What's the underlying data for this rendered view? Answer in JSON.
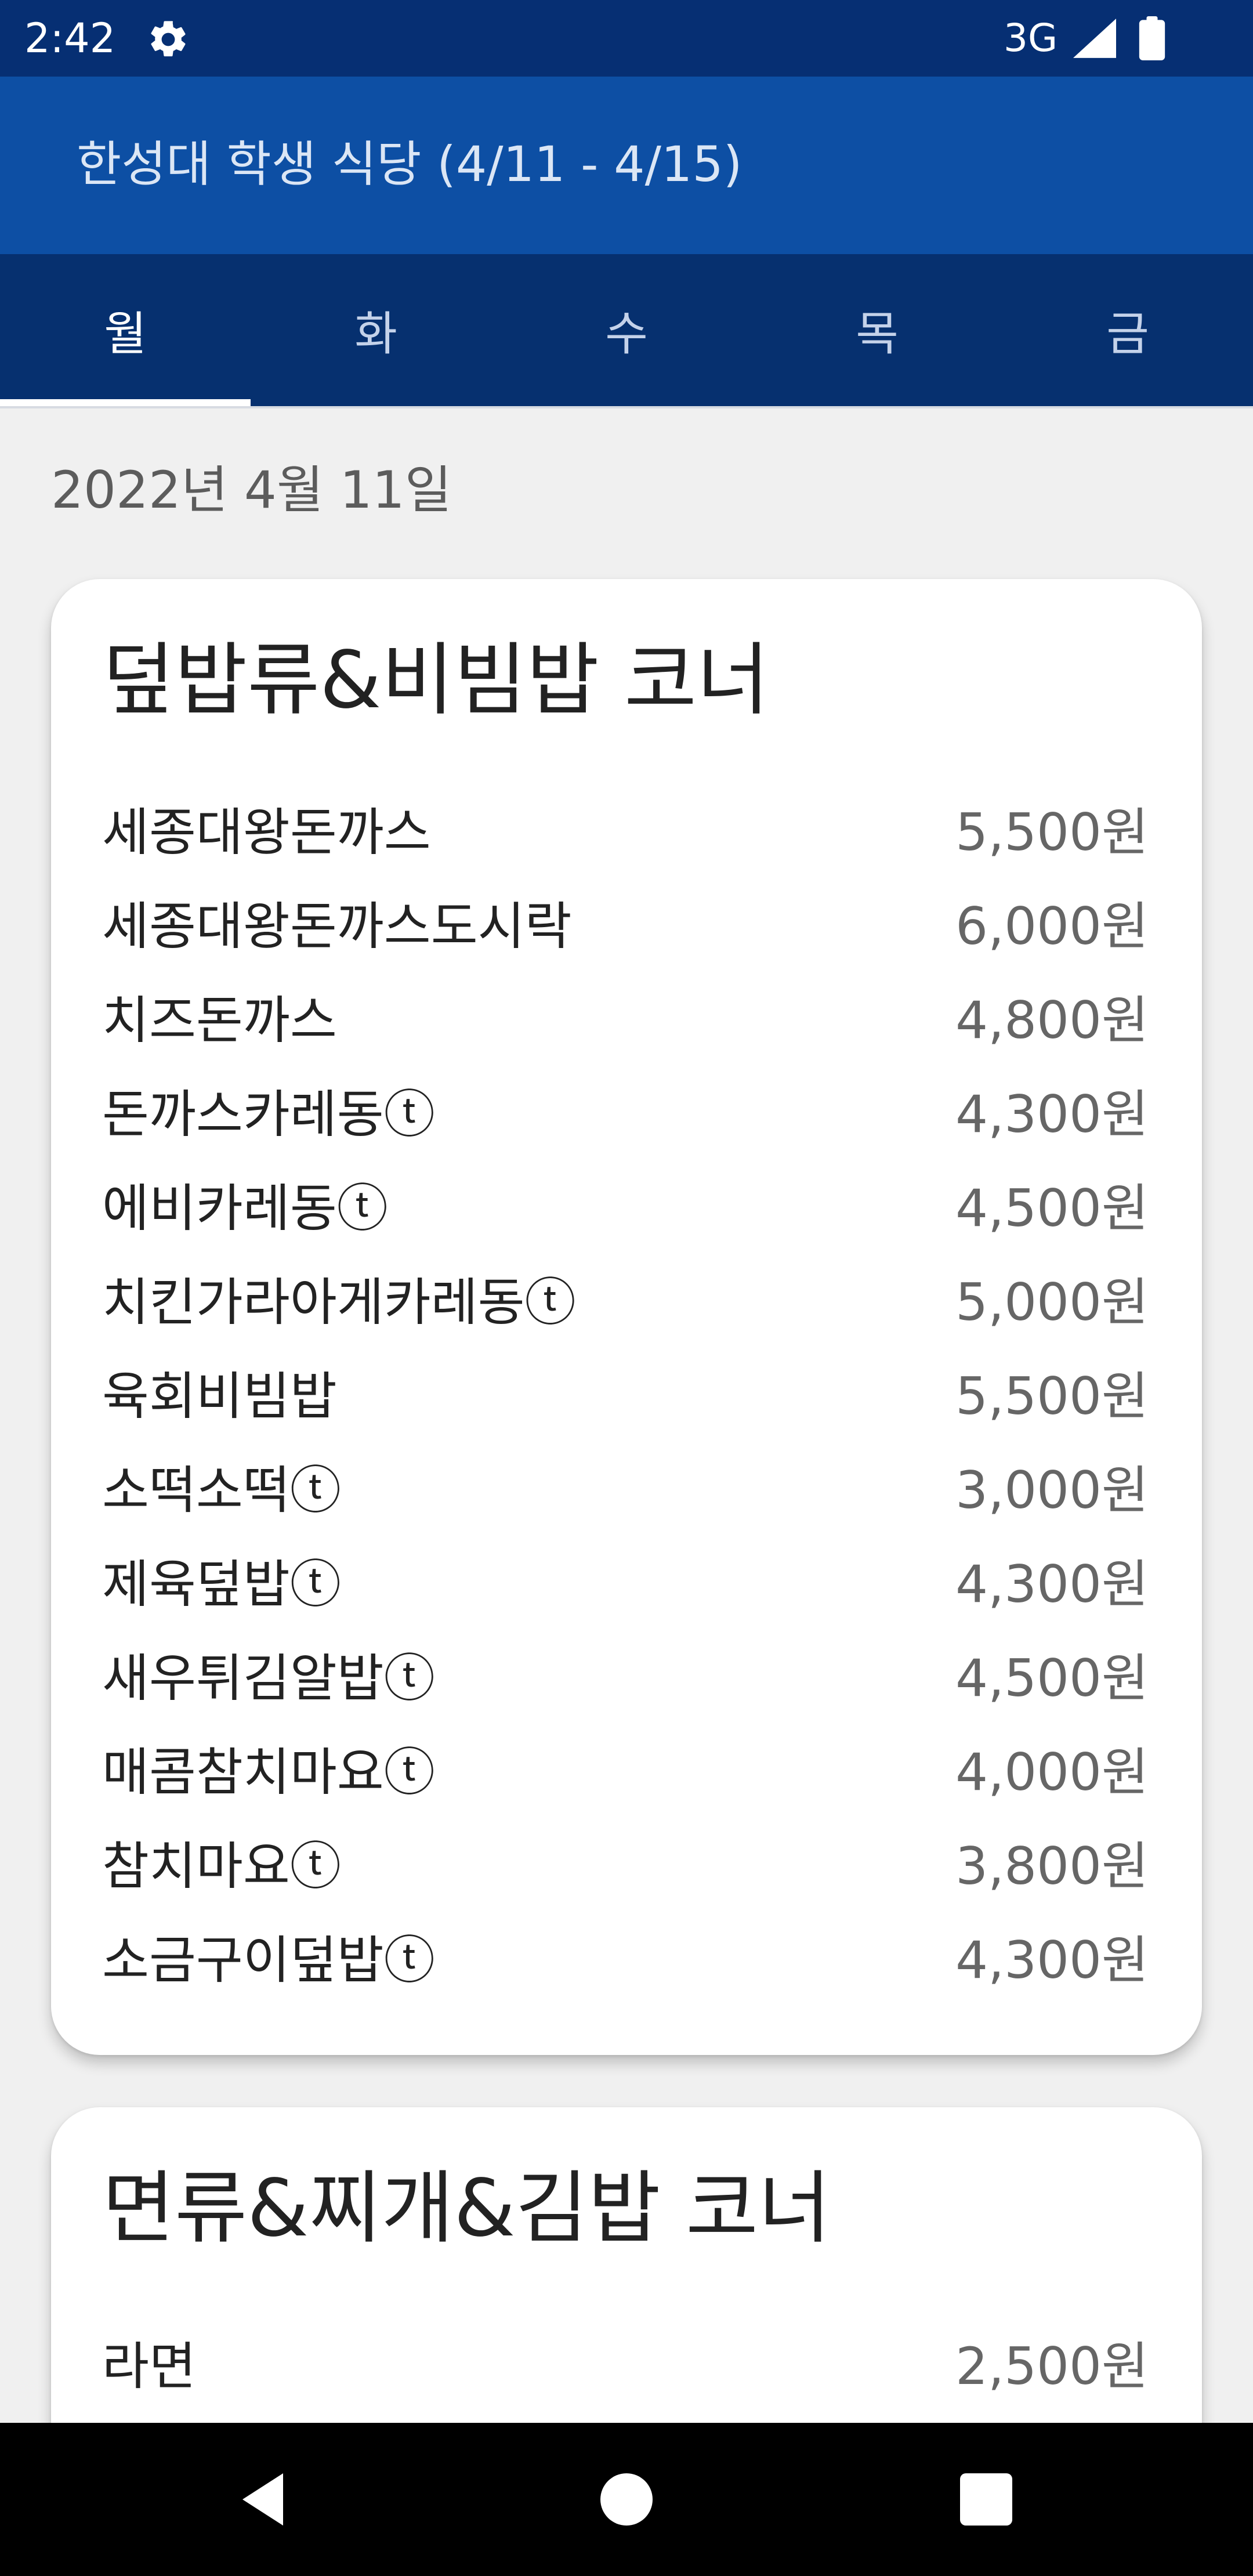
{
  "status_bar": {
    "time": "2:42",
    "network": "3G",
    "icons": [
      "gear-icon",
      "signal-icon",
      "battery-icon"
    ]
  },
  "app_bar": {
    "title": "한성대 학생 식당 (4/11 - 4/15)"
  },
  "tabs": [
    {
      "label": "월",
      "selected": true
    },
    {
      "label": "화",
      "selected": false
    },
    {
      "label": "수",
      "selected": false
    },
    {
      "label": "목",
      "selected": false
    },
    {
      "label": "금",
      "selected": false
    }
  ],
  "date": "2022년 4월 11일",
  "sections": [
    {
      "title": "덮밥류&비빔밥 코너",
      "items": [
        {
          "name": "세종대왕돈까스",
          "price": "5,500원"
        },
        {
          "name": "세종대왕돈까스도시락",
          "price": "6,000원"
        },
        {
          "name": "치즈돈까스",
          "price": "4,800원"
        },
        {
          "name": "돈까스카레동ⓣ",
          "price": "4,300원"
        },
        {
          "name": "에비카레동ⓣ",
          "price": "4,500원"
        },
        {
          "name": "치킨가라아게카레동ⓣ",
          "price": "5,000원"
        },
        {
          "name": "육회비빔밥",
          "price": "5,500원"
        },
        {
          "name": "소떡소떡ⓣ",
          "price": "3,000원"
        },
        {
          "name": "제육덮밥ⓣ",
          "price": "4,300원"
        },
        {
          "name": "새우튀김알밥ⓣ",
          "price": "4,500원"
        },
        {
          "name": "매콤참치마요ⓣ",
          "price": "4,000원"
        },
        {
          "name": "참치마요ⓣ",
          "price": "3,800원"
        },
        {
          "name": "소금구이덮밥ⓣ",
          "price": "4,300원"
        }
      ]
    },
    {
      "title": "면류&찌개&김밥 코너",
      "items": [
        {
          "name": "라면",
          "price": "2,500원"
        }
      ]
    }
  ],
  "nav_bar": {
    "icons": [
      "back-icon",
      "home-icon",
      "recents-icon"
    ]
  },
  "colors": {
    "status_bar": "#062f73",
    "app_bar": "#0d4fa4",
    "tab_bar": "#06306f",
    "background": "#f0f0f0",
    "card": "#ffffff"
  }
}
